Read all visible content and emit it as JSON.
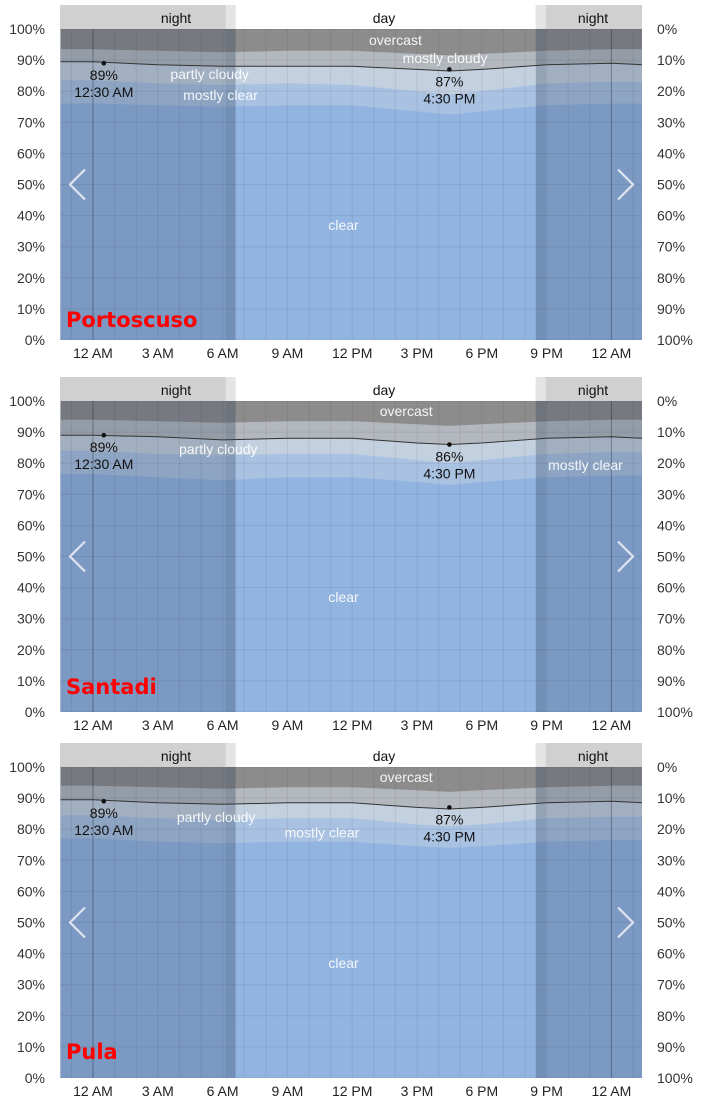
{
  "y_left_ticks": [
    "0%",
    "10%",
    "20%",
    "30%",
    "40%",
    "50%",
    "60%",
    "70%",
    "80%",
    "90%",
    "100%"
  ],
  "y_right_ticks": [
    "100%",
    "90%",
    "80%",
    "70%",
    "60%",
    "50%",
    "40%",
    "30%",
    "20%",
    "10%",
    "0%"
  ],
  "x_ticks": [
    "12 AM",
    "3 AM",
    "6 AM",
    "9 AM",
    "12 PM",
    "3 PM",
    "6 PM",
    "9 PM",
    "12 AM"
  ],
  "band_labels": {
    "night": "night",
    "day": "day"
  },
  "category_labels": {
    "overcast": "overcast",
    "mostly_cloudy": "mostly cloudy",
    "partly_cloudy": "partly cloudy",
    "mostly_clear": "mostly clear",
    "clear": "clear"
  },
  "colors": {
    "clear_night": "#7a93b4",
    "clear_day": "#92b4e0",
    "header_night": "#d0d0d0",
    "header_day": "#ffffff",
    "label": "#333333",
    "location": "#ff0000"
  },
  "chart_data": [
    {
      "type": "area",
      "location": "Portoscuso",
      "x_hours": [
        -1.5,
        0,
        3,
        6,
        9,
        12,
        15,
        16.5,
        18,
        21,
        24,
        25.5
      ],
      "series": [
        {
          "name": "clear",
          "values": [
            76,
            76,
            75.5,
            75,
            75.5,
            75.5,
            73.5,
            72.5,
            73.5,
            75.5,
            76,
            76
          ]
        },
        {
          "name": "mostly clear",
          "values": [
            83.5,
            83.5,
            82.5,
            82,
            82.5,
            82,
            80,
            79,
            80,
            82.5,
            83,
            83
          ]
        },
        {
          "name": "partly cloudy",
          "values": [
            89.5,
            89.5,
            88.5,
            88,
            88,
            88,
            87,
            86.5,
            87,
            88.5,
            89,
            88.5
          ]
        },
        {
          "name": "mostly cloudy",
          "values": [
            93.5,
            93.5,
            93,
            92.5,
            93,
            93,
            92,
            91.5,
            92,
            93,
            93.5,
            93.5
          ]
        },
        {
          "name": "overcast",
          "values": [
            100,
            100,
            100,
            100,
            100,
            100,
            100,
            100,
            100,
            100,
            100,
            100
          ]
        }
      ],
      "annotations": [
        {
          "value": "89%",
          "time": "12:30 AM"
        },
        {
          "value": "87%",
          "time": "4:30 PM"
        }
      ]
    },
    {
      "type": "area",
      "location": "Santadi",
      "x_hours": [
        -1.5,
        0,
        3,
        6,
        9,
        12,
        15,
        16.5,
        18,
        21,
        24,
        25.5
      ],
      "series": [
        {
          "name": "clear",
          "values": [
            76.5,
            76.5,
            75.5,
            74.5,
            75.5,
            75.5,
            74,
            73,
            74,
            75.5,
            76,
            76
          ]
        },
        {
          "name": "mostly clear",
          "values": [
            84,
            84,
            83,
            82.5,
            83,
            83,
            81,
            80,
            81,
            83,
            83.5,
            83.5
          ]
        },
        {
          "name": "partly cloudy",
          "values": [
            89,
            89,
            88.5,
            87.5,
            88,
            88,
            86.5,
            86,
            86.5,
            88,
            88.5,
            88
          ]
        },
        {
          "name": "mostly cloudy",
          "values": [
            94,
            94,
            93.5,
            93,
            93.5,
            93.5,
            92.5,
            92,
            92.5,
            93.5,
            94,
            94
          ]
        },
        {
          "name": "overcast",
          "values": [
            100,
            100,
            100,
            100,
            100,
            100,
            100,
            100,
            100,
            100,
            100,
            100
          ]
        }
      ],
      "annotations": [
        {
          "value": "89%",
          "time": "12:30 AM"
        },
        {
          "value": "86%",
          "time": "4:30 PM"
        }
      ]
    },
    {
      "type": "area",
      "location": "Pula",
      "x_hours": [
        -1.5,
        0,
        3,
        6,
        9,
        12,
        15,
        16.5,
        18,
        21,
        24,
        25.5
      ],
      "series": [
        {
          "name": "clear",
          "values": [
            77,
            77,
            76,
            75.5,
            76,
            76,
            74.5,
            74,
            74.5,
            76,
            76.5,
            76.5
          ]
        },
        {
          "name": "mostly clear",
          "values": [
            84.5,
            84.5,
            83.5,
            83,
            83.5,
            83.5,
            81.5,
            81,
            81.5,
            83.5,
            84,
            84
          ]
        },
        {
          "name": "partly cloudy",
          "values": [
            89.5,
            89.5,
            88.5,
            88,
            88.5,
            88.5,
            87,
            86.5,
            87,
            88.5,
            89,
            88.5
          ]
        },
        {
          "name": "mostly cloudy",
          "values": [
            94,
            94,
            93.5,
            93,
            93.5,
            93.5,
            92.5,
            92,
            92.5,
            93.5,
            94,
            94
          ]
        },
        {
          "name": "overcast",
          "values": [
            100,
            100,
            100,
            100,
            100,
            100,
            100,
            100,
            100,
            100,
            100,
            100
          ]
        }
      ],
      "annotations": [
        {
          "value": "89%",
          "time": "12:30 AM"
        },
        {
          "value": "87%",
          "time": "4:30 PM"
        }
      ]
    }
  ]
}
